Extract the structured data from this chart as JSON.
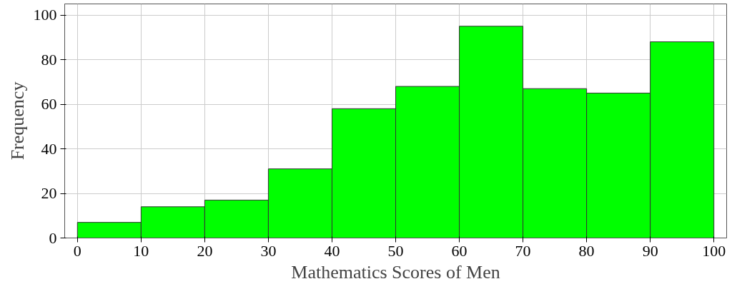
{
  "chart_data": {
    "type": "histogram",
    "xlabel": "Mathematics Scores of Men",
    "ylabel": "Frequency",
    "bins": [
      0,
      10,
      20,
      30,
      40,
      50,
      60,
      70,
      80,
      90,
      100
    ],
    "values": [
      7,
      14,
      17,
      31,
      58,
      68,
      95,
      67,
      65,
      88
    ],
    "color": "#00ff00",
    "xlim": [
      -2,
      102
    ],
    "ylim": [
      0,
      105
    ],
    "xticks": [
      0,
      10,
      20,
      30,
      40,
      50,
      60,
      70,
      80,
      90,
      100
    ],
    "yticks": [
      0,
      20,
      40,
      60,
      80,
      100
    ],
    "grid": true
  }
}
